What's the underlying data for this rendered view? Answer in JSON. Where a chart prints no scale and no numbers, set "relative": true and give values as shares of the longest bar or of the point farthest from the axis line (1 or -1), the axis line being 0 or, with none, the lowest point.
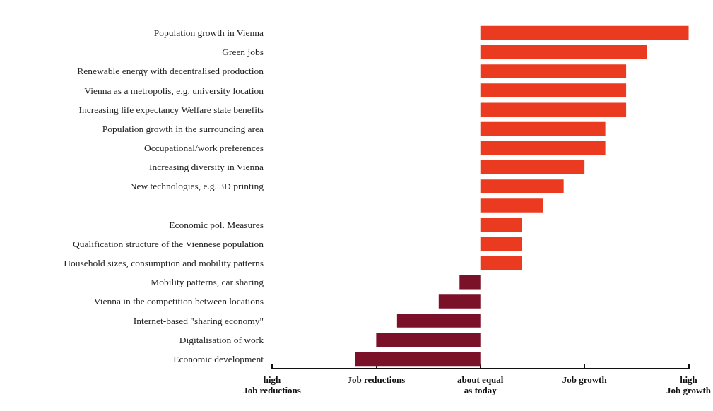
{
  "chart_data": {
    "type": "bar",
    "orientation": "horizontal",
    "relative": true,
    "categories": [
      "Population growth in Vienna",
      "Green jobs",
      "Renewable energy with decentralised production",
      "Vienna as a metropolis, e.g. university location",
      "Increasing life expectancy Welfare state benefits",
      "Population growth in the surrounding area",
      "Occupational/work preferences",
      "Increasing diversity in Vienna",
      "New technologies, e.g. 3D printing",
      null,
      "Economic pol. Measures",
      "Qualification structure of the Viennese population",
      "Household sizes, consumption and mobility patterns",
      "Mobility patterns, car sharing",
      "Vienna in the competition between locations",
      "Internet-based \"sharing economy\"",
      "Digitalisation of work",
      "Economic development"
    ],
    "values": [
      1.0,
      0.8,
      0.7,
      0.7,
      0.7,
      0.6,
      0.6,
      0.5,
      0.4,
      0.3,
      0.2,
      0.2,
      0.2,
      -0.1,
      -0.2,
      -0.4,
      -0.5,
      -0.6
    ],
    "colors": [
      "#ea3a1f",
      "#ea3a1f",
      "#ea3a1f",
      "#ea3a1f",
      "#ea3a1f",
      "#ea3a1f",
      "#ea3a1f",
      "#ea3a1f",
      "#ea3a1f",
      "#ea3a1f",
      "#ea3a1f",
      "#ea3a1f",
      "#ea3a1f",
      "#7b1129",
      "#7b1129",
      "#7b1129",
      "#7b1129",
      "#7b1129"
    ],
    "annotations": [
      "high\nJob reductions",
      "Job reductions",
      "about equal\nas today",
      "Job growth",
      "high\nJob growth"
    ],
    "grid": false
  }
}
